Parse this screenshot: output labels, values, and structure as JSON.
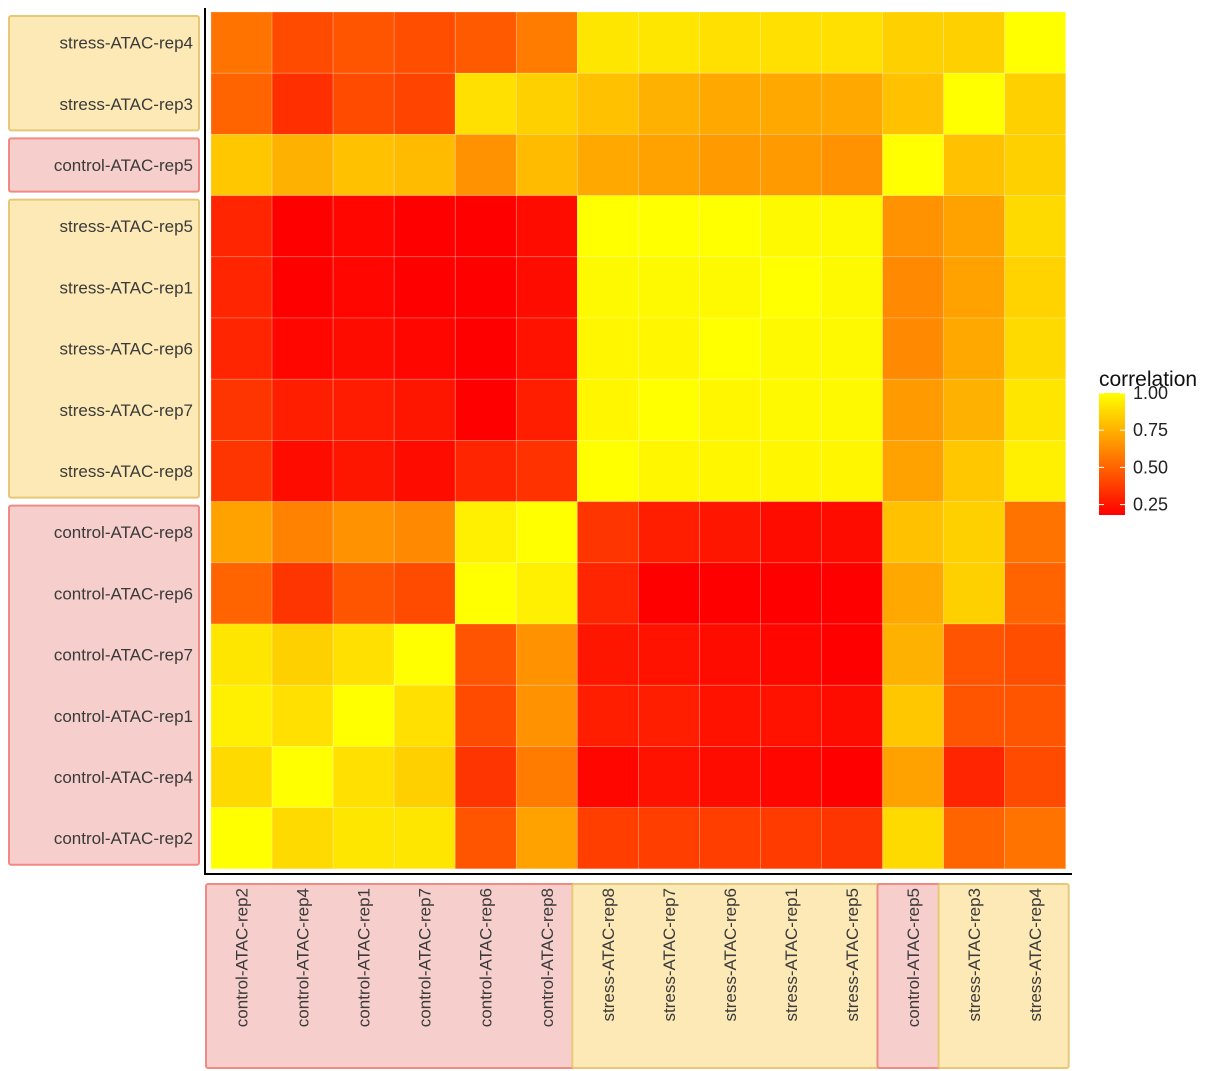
{
  "chart_data": {
    "type": "heatmap",
    "x_labels": [
      "control-ATAC-rep2",
      "control-ATAC-rep4",
      "control-ATAC-rep1",
      "control-ATAC-rep7",
      "control-ATAC-rep6",
      "control-ATAC-rep8",
      "stress-ATAC-rep8",
      "stress-ATAC-rep7",
      "stress-ATAC-rep6",
      "stress-ATAC-rep1",
      "stress-ATAC-rep5",
      "control-ATAC-rep5",
      "stress-ATAC-rep3",
      "stress-ATAC-rep4"
    ],
    "y_labels": [
      "stress-ATAC-rep4",
      "stress-ATAC-rep3",
      "control-ATAC-rep5",
      "stress-ATAC-rep5",
      "stress-ATAC-rep1",
      "stress-ATAC-rep6",
      "stress-ATAC-rep7",
      "stress-ATAC-rep8",
      "control-ATAC-rep8",
      "control-ATAC-rep6",
      "control-ATAC-rep7",
      "control-ATAC-rep1",
      "control-ATAC-rep4",
      "control-ATAC-rep2"
    ],
    "values": [
      [
        0.55,
        0.42,
        0.45,
        0.43,
        0.47,
        0.58,
        0.92,
        0.92,
        0.9,
        0.9,
        0.9,
        0.85,
        0.85,
        1.0
      ],
      [
        0.5,
        0.33,
        0.42,
        0.4,
        0.9,
        0.85,
        0.8,
        0.75,
        0.72,
        0.72,
        0.72,
        0.8,
        1.0,
        0.85
      ],
      [
        0.82,
        0.75,
        0.8,
        0.78,
        0.65,
        0.78,
        0.72,
        0.7,
        0.68,
        0.68,
        0.65,
        1.0,
        0.8,
        0.85
      ],
      [
        0.3,
        0.18,
        0.2,
        0.18,
        0.05,
        0.22,
        1.0,
        1.0,
        1.0,
        0.98,
        0.98,
        0.65,
        0.7,
        0.88
      ],
      [
        0.3,
        0.18,
        0.2,
        0.18,
        0.05,
        0.22,
        0.98,
        0.98,
        0.98,
        1.0,
        0.98,
        0.62,
        0.7,
        0.86
      ],
      [
        0.3,
        0.2,
        0.22,
        0.2,
        0.08,
        0.24,
        0.97,
        0.97,
        1.0,
        0.98,
        0.98,
        0.62,
        0.72,
        0.88
      ],
      [
        0.35,
        0.28,
        0.27,
        0.25,
        0.15,
        0.28,
        0.97,
        1.0,
        0.97,
        0.98,
        0.98,
        0.68,
        0.75,
        0.92
      ],
      [
        0.35,
        0.22,
        0.25,
        0.22,
        0.3,
        0.34,
        1.0,
        0.97,
        0.97,
        0.97,
        0.97,
        0.7,
        0.82,
        0.95
      ],
      [
        0.7,
        0.6,
        0.65,
        0.62,
        0.95,
        1.0,
        0.35,
        0.28,
        0.25,
        0.22,
        0.22,
        0.8,
        0.85,
        0.55
      ],
      [
        0.5,
        0.35,
        0.45,
        0.42,
        1.0,
        0.95,
        0.3,
        0.15,
        0.08,
        0.04,
        0.02,
        0.72,
        0.85,
        0.5
      ],
      [
        0.92,
        0.85,
        0.9,
        1.0,
        0.45,
        0.65,
        0.25,
        0.24,
        0.22,
        0.2,
        0.18,
        0.75,
        0.45,
        0.43
      ],
      [
        0.95,
        0.9,
        1.0,
        0.9,
        0.42,
        0.65,
        0.28,
        0.28,
        0.24,
        0.24,
        0.22,
        0.82,
        0.45,
        0.45
      ],
      [
        0.88,
        1.0,
        0.9,
        0.85,
        0.35,
        0.58,
        0.2,
        0.24,
        0.22,
        0.2,
        0.18,
        0.7,
        0.3,
        0.42
      ],
      [
        1.0,
        0.88,
        0.92,
        0.92,
        0.45,
        0.7,
        0.38,
        0.38,
        0.38,
        0.37,
        0.35,
        0.88,
        0.5,
        0.55
      ]
    ],
    "x_groups": [
      {
        "start": 0,
        "end": 5,
        "group": "control"
      },
      {
        "start": 6,
        "end": 10,
        "group": "stress"
      },
      {
        "start": 11,
        "end": 11,
        "group": "control"
      },
      {
        "start": 12,
        "end": 13,
        "group": "stress"
      }
    ],
    "y_groups": [
      {
        "start": 0,
        "end": 1,
        "group": "stress"
      },
      {
        "start": 2,
        "end": 2,
        "group": "control"
      },
      {
        "start": 3,
        "end": 7,
        "group": "stress"
      },
      {
        "start": 8,
        "end": 13,
        "group": "control"
      }
    ],
    "legend": {
      "title": "correlation",
      "ticks": [
        {
          "value": 1.0,
          "label": "1.00"
        },
        {
          "value": 0.75,
          "label": "0.75"
        },
        {
          "value": 0.5,
          "label": "0.50"
        },
        {
          "value": 0.25,
          "label": "0.25"
        }
      ],
      "min": 0.18,
      "max": 1.0,
      "placement": "right"
    },
    "color_scale": {
      "low": "#ff0000",
      "high": "#ffff00"
    },
    "group_colors": {
      "control": {
        "fill": "#f6cfcc",
        "stroke": "#f08a82"
      },
      "stress": {
        "fill": "#fde9b5",
        "stroke": "#e7c877"
      }
    },
    "grid": false
  }
}
